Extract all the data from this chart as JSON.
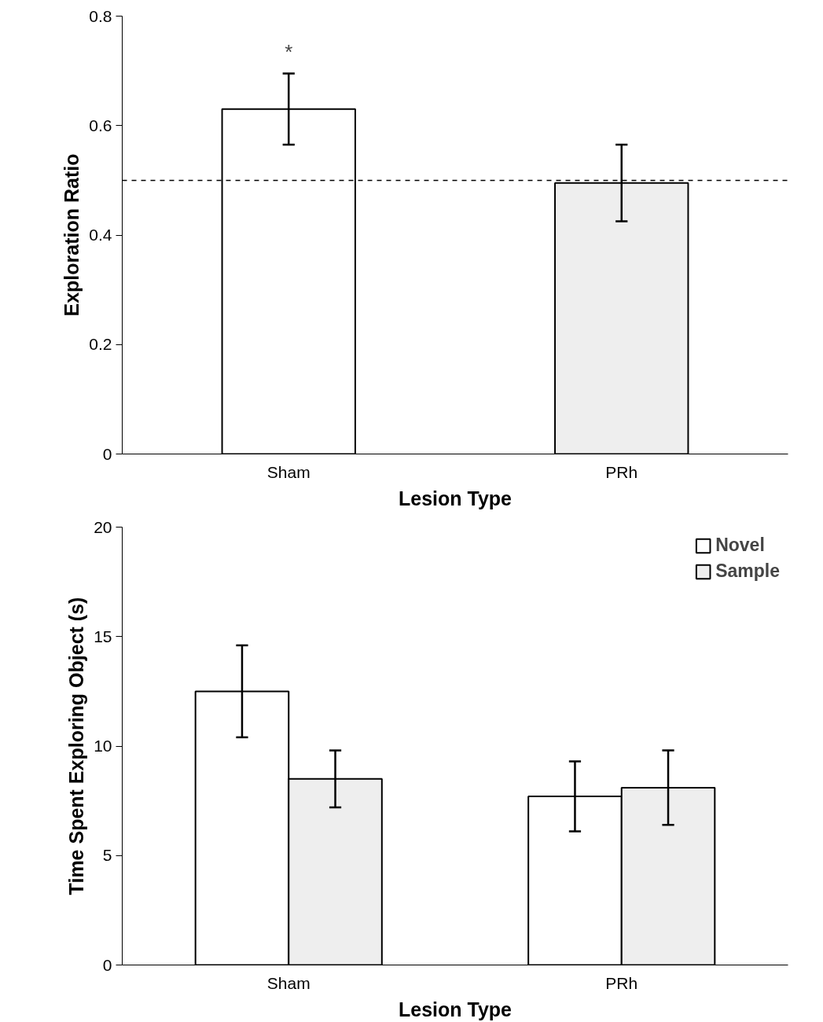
{
  "chart_data": [
    {
      "type": "bar",
      "xlabel": "Lesion Type",
      "ylabel": "Exploration Ratio",
      "categories": [
        "Sham",
        "PRh"
      ],
      "values": [
        0.63,
        0.495
      ],
      "colors": [
        "#ffffff",
        "#eeeeee"
      ],
      "errors": [
        0.065,
        0.07
      ],
      "ylim": [
        0,
        0.8
      ],
      "yticks": [
        0,
        0.2,
        0.4,
        0.6,
        0.8
      ],
      "grid": false,
      "ref_lines": [
        {
          "axis": "y",
          "value": 0.5,
          "line_style": "dashed",
          "color": "#000000"
        }
      ],
      "annotations": [
        "*"
      ]
    },
    {
      "type": "bar",
      "xlabel": "Lesion Type",
      "ylabel": "Time Spent Exploring Object (s)",
      "categories": [
        "Sham",
        "PRh"
      ],
      "series": [
        {
          "name": "Novel",
          "color": "#ffffff",
          "values": [
            12.5,
            7.7
          ],
          "errors": [
            2.1,
            1.6
          ]
        },
        {
          "name": "Sample",
          "color": "#eeeeee",
          "values": [
            8.5,
            8.1
          ],
          "errors": [
            1.3,
            1.7
          ]
        }
      ],
      "ylim": [
        0,
        20
      ],
      "yticks": [
        0,
        5,
        10,
        15,
        20
      ],
      "grid": false,
      "legend": "top right"
    }
  ]
}
